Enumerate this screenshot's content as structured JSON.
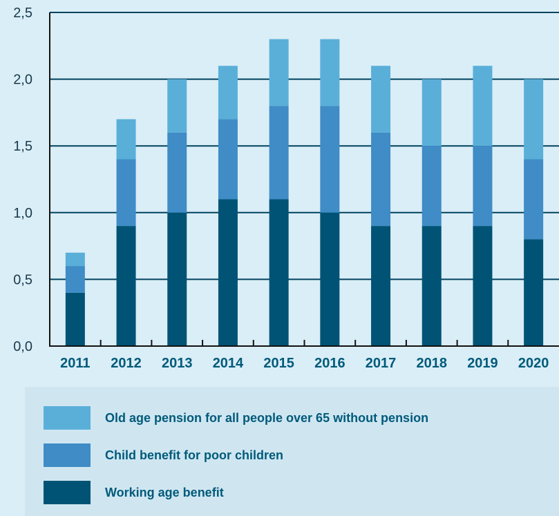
{
  "chart_data": {
    "type": "bar",
    "stacked": true,
    "categories": [
      "2011",
      "2012",
      "2013",
      "2014",
      "2015",
      "2016",
      "2017",
      "2018",
      "2019",
      "2020"
    ],
    "series": [
      {
        "name": "Working age benefit",
        "color": "#005375",
        "values": [
          0.4,
          0.9,
          1.0,
          1.1,
          1.1,
          1.0,
          0.9,
          0.9,
          0.9,
          0.8
        ]
      },
      {
        "name": "Child benefit for poor children",
        "color": "#3f8cc6",
        "values": [
          0.2,
          0.5,
          0.6,
          0.6,
          0.7,
          0.8,
          0.7,
          0.6,
          0.6,
          0.6
        ]
      },
      {
        "name": "Old age pension for all people over 65 without pension",
        "color": "#5aafd9",
        "values": [
          0.1,
          0.3,
          0.4,
          0.4,
          0.5,
          0.5,
          0.5,
          0.5,
          0.6,
          0.6
        ]
      }
    ],
    "ylim": [
      0,
      2.5
    ],
    "yticks": [
      "0,0",
      "0,5",
      "1,0",
      "1,5",
      "2,0",
      "2,5"
    ],
    "grid": true,
    "legend_position": "bottom"
  },
  "legend": {
    "items": [
      {
        "label": "Old age pension for all people over 65 without pension",
        "color": "#5aafd9"
      },
      {
        "label": "Child benefit for poor children",
        "color": "#3f8cc6"
      },
      {
        "label": "Working age benefit",
        "color": "#005375"
      }
    ]
  }
}
